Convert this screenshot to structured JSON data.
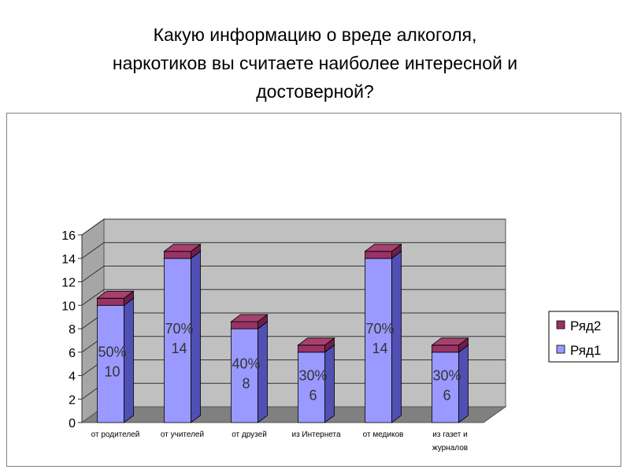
{
  "slide": {
    "title_lines": [
      "Какую информацию о вреде алкоголя,",
      "наркотиков  вы считаете наиболее интересной и",
      "достоверной?"
    ]
  },
  "chart_data": {
    "type": "bar",
    "stacked": true,
    "three_d": true,
    "categories": [
      "от родителей",
      "от учителей",
      "от друзей",
      "из Интернета",
      "от медиков",
      "из газет и журналов"
    ],
    "category_lines": [
      [
        "от родителей"
      ],
      [
        "от учителей"
      ],
      [
        "от друзей"
      ],
      [
        "из Интернета"
      ],
      [
        "от медиков"
      ],
      [
        "из газет и",
        "журналов"
      ]
    ],
    "series": [
      {
        "name": "Ряд1",
        "values": [
          10,
          14,
          8,
          6,
          14,
          6
        ],
        "color": "#9999ff",
        "side_color": "#5050b4",
        "top_color": "#b8b8ff"
      },
      {
        "name": "Ряд2",
        "values": [
          0.6,
          0.6,
          0.6,
          0.6,
          0.6,
          0.6
        ],
        "color": "#993366",
        "side_color": "#6e1f47",
        "top_color": "#a8406f"
      }
    ],
    "data_labels": [
      "10",
      "14",
      "8",
      "6",
      "14",
      "6"
    ],
    "percent_labels": [
      "50%",
      "70%",
      "40%",
      "30%",
      "70%",
      "30%"
    ],
    "ylim": [
      0,
      16
    ],
    "yticks": [
      "0",
      "2",
      "4",
      "6",
      "8",
      "10",
      "12",
      "14",
      "16"
    ],
    "grid": true,
    "legend_position": "right",
    "legend": [
      "Ряд2",
      "Ряд1"
    ],
    "wall_color": "#c0c0c0",
    "floor_color": "#808080"
  }
}
